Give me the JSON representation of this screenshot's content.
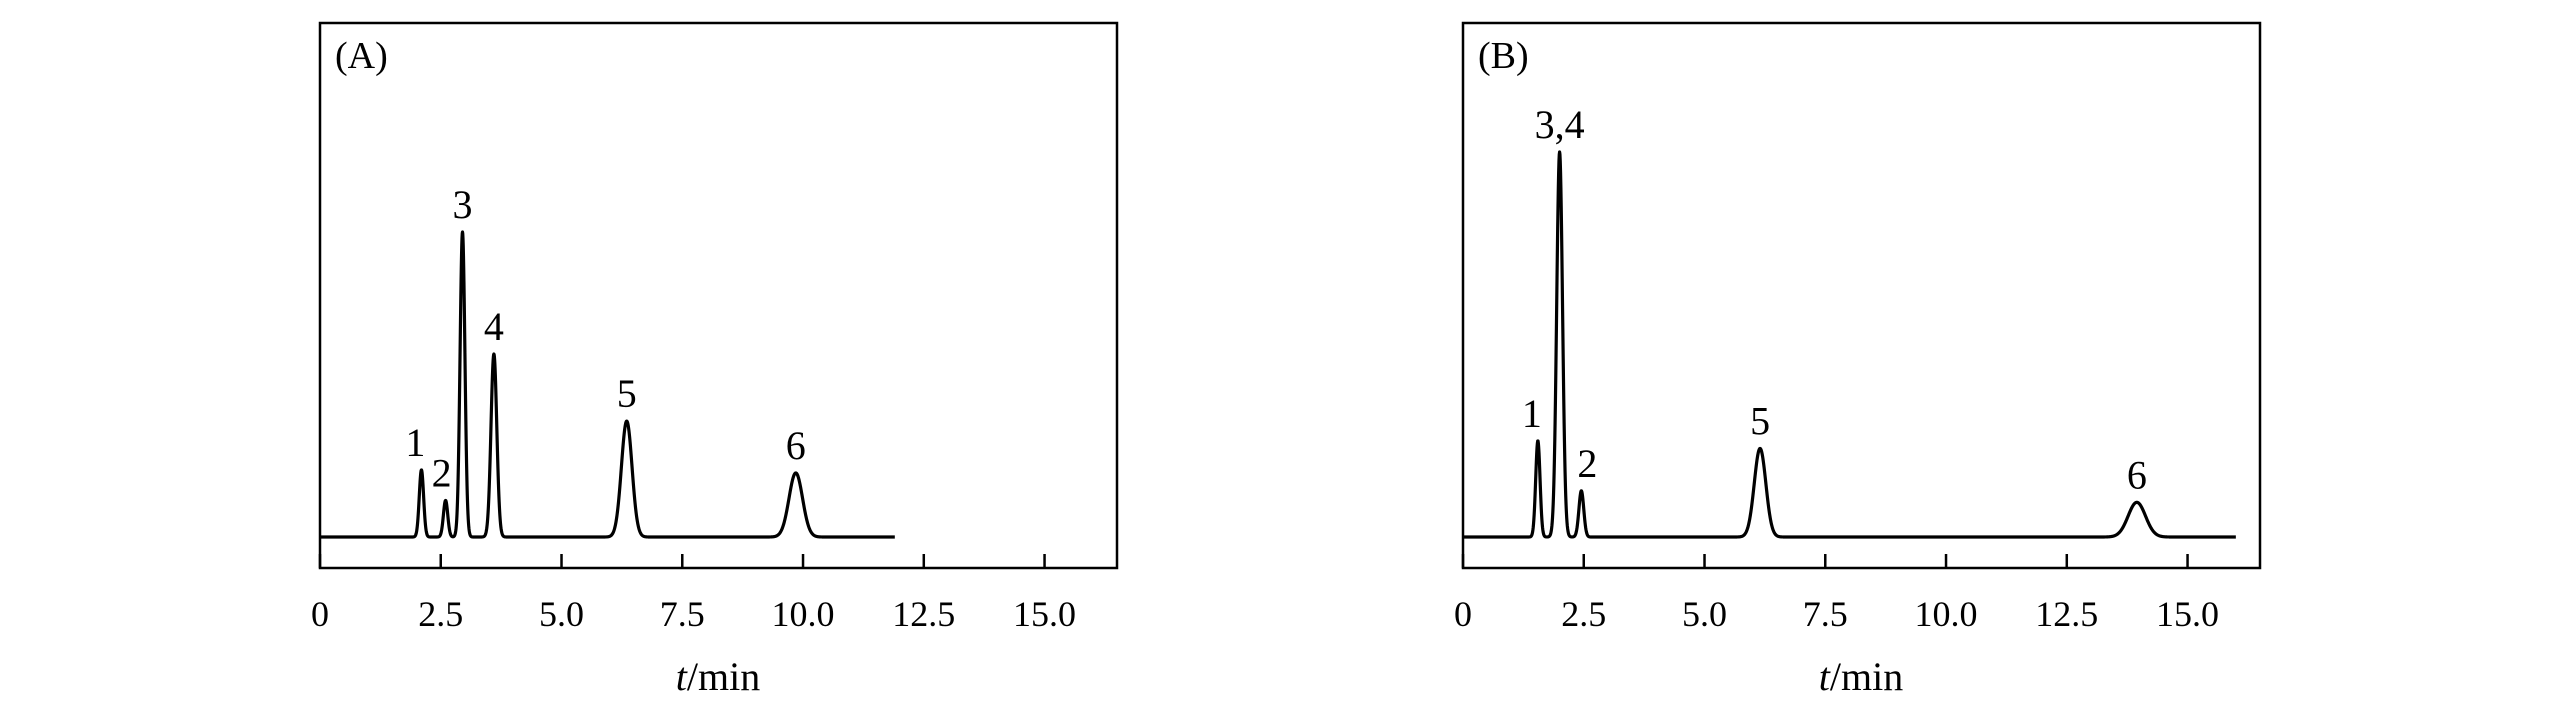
{
  "chart_data": [
    {
      "type": "line",
      "panel_label": "(A)",
      "xlabel_italic": "t",
      "xlabel_rest": "/min",
      "xlim": [
        0,
        16.5
      ],
      "x_ticks": [
        "0",
        "2.5",
        "5.0",
        "7.5",
        "10.0",
        "12.5",
        "15.0"
      ],
      "x_tick_values": [
        0,
        2.5,
        5.0,
        7.5,
        10.0,
        12.5,
        15.0
      ],
      "ylim": [
        0,
        1.1
      ],
      "trace_range": [
        0,
        11.9
      ],
      "peaks": [
        {
          "label": "1",
          "t": 2.1,
          "height": 0.22,
          "width": 0.045
        },
        {
          "label": "2",
          "t": 2.6,
          "height": 0.12,
          "width": 0.045
        },
        {
          "label": "3",
          "t": 2.95,
          "height": 1.0,
          "width": 0.05
        },
        {
          "label": "4",
          "t": 3.6,
          "height": 0.6,
          "width": 0.06
        },
        {
          "label": "5",
          "t": 6.35,
          "height": 0.38,
          "width": 0.11
        },
        {
          "label": "6",
          "t": 9.85,
          "height": 0.21,
          "width": 0.14
        }
      ]
    },
    {
      "type": "line",
      "panel_label": "(B)",
      "xlabel_italic": "t",
      "xlabel_rest": "/min",
      "xlim": [
        0,
        16.5
      ],
      "x_ticks": [
        "0",
        "2.5",
        "5.0",
        "7.5",
        "10.0",
        "12.5",
        "15.0"
      ],
      "x_tick_values": [
        0,
        2.5,
        5.0,
        7.5,
        10.0,
        12.5,
        15.0
      ],
      "ylim": [
        0,
        1.1
      ],
      "trace_range": [
        0,
        16.0
      ],
      "peaks": [
        {
          "label": "1",
          "t": 1.55,
          "height": 0.25,
          "width": 0.045
        },
        {
          "label": "3,4",
          "t": 2.0,
          "height": 1.0,
          "width": 0.06
        },
        {
          "label": "2",
          "t": 2.45,
          "height": 0.12,
          "width": 0.05
        },
        {
          "label": "5",
          "t": 6.15,
          "height": 0.23,
          "width": 0.12
        },
        {
          "label": "6",
          "t": 13.95,
          "height": 0.09,
          "width": 0.18
        }
      ]
    }
  ]
}
